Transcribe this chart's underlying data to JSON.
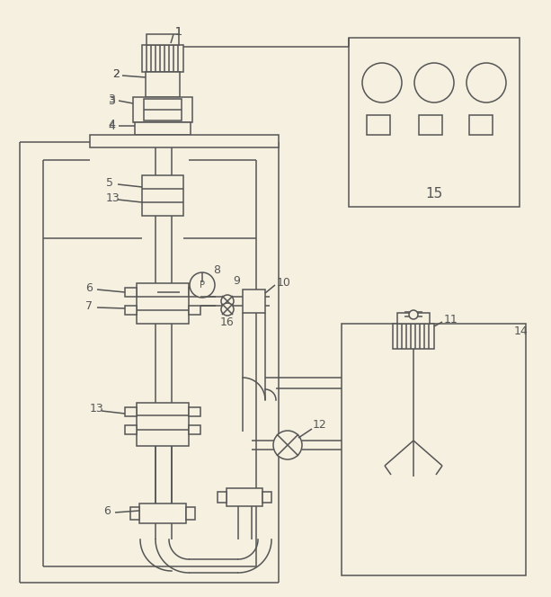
{
  "bg_color": "#f5f0e0",
  "line_color": "#555555",
  "lw": 1.1
}
